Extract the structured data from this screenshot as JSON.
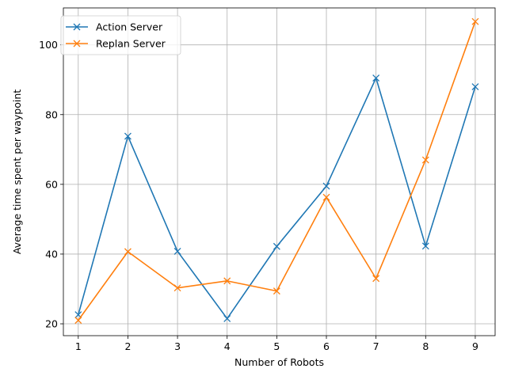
{
  "chart_data": {
    "type": "line",
    "title": "",
    "xlabel": "Number of Robots",
    "ylabel": "Average time spent per waypoint",
    "x": [
      1,
      2,
      3,
      4,
      5,
      6,
      7,
      8,
      9
    ],
    "xlim": [
      0.7,
      9.4
    ],
    "ylim": [
      16.6,
      110.6
    ],
    "xticks": [
      1,
      2,
      3,
      4,
      5,
      6,
      7,
      8,
      9
    ],
    "yticks": [
      20,
      40,
      60,
      80,
      100
    ],
    "grid": true,
    "legend_position": "upper-left",
    "marker": "x",
    "series": [
      {
        "name": "Action Server",
        "color": "#1f77b4",
        "values": [
          22.6,
          73.8,
          40.8,
          21.5,
          42.2,
          59.5,
          90.5,
          42.3,
          88.0
        ]
      },
      {
        "name": "Replan Server",
        "color": "#ff7f0e",
        "values": [
          21.0,
          40.7,
          30.3,
          32.3,
          29.4,
          56.3,
          33.0,
          67.0,
          106.7
        ]
      }
    ]
  }
}
